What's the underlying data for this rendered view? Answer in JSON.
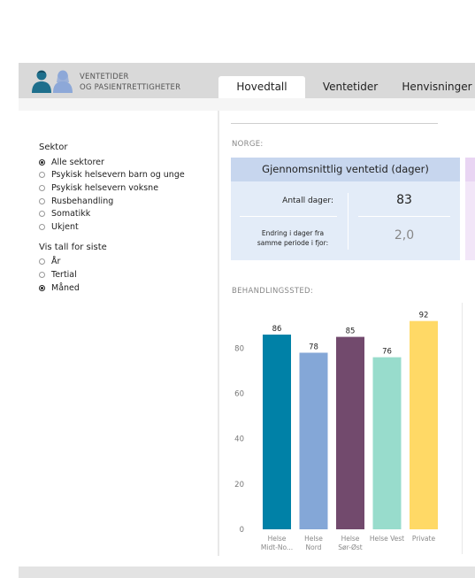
{
  "header": {
    "brand_line1": "VENTETIDER",
    "brand_line2": "OG PASIENTRETTIGHETER",
    "tabs": [
      {
        "label": "Hovedtall",
        "active": true
      },
      {
        "label": "Ventetider",
        "active": false
      },
      {
        "label": "Henvisninger",
        "active": false
      }
    ]
  },
  "sidebar": {
    "sector_title": "Sektor",
    "sector_options": [
      {
        "label": "Alle sektorer",
        "selected": true
      },
      {
        "label": "Psykisk helsevern barn og unge",
        "selected": false
      },
      {
        "label": "Psykisk helsevern voksne",
        "selected": false
      },
      {
        "label": "Rusbehandling",
        "selected": false
      },
      {
        "label": "Somatikk",
        "selected": false
      },
      {
        "label": "Ukjent",
        "selected": false
      }
    ],
    "period_title": "Vis tall for siste",
    "period_options": [
      {
        "label": "År",
        "selected": false
      },
      {
        "label": "Tertial",
        "selected": false
      },
      {
        "label": "Måned",
        "selected": true
      }
    ]
  },
  "main": {
    "norway_label": "NORGE:",
    "card": {
      "title": "Gjennomsnittlig ventetid (dager)",
      "days_label": "Antall dager:",
      "days_value": "83",
      "change_label_line1": "Endring i dager fra",
      "change_label_line2": "samme periode i fjor:",
      "change_value": "2,0"
    },
    "treatment_label": "BEHANDLINGSSTED:"
  },
  "colors": {
    "card_bg": "#e3ecf8",
    "card_header": "#c7d6ee",
    "accent_purple_strip": "#f2e6f8"
  },
  "chart_data": {
    "type": "bar",
    "categories": [
      [
        "Helse",
        "Midt-No..."
      ],
      [
        "Helse",
        "Nord"
      ],
      [
        "Helse",
        "Sør-Øst"
      ],
      [
        "Helse Vest"
      ],
      [
        "Private"
      ]
    ],
    "values": [
      86,
      78,
      85,
      76,
      92
    ],
    "colors": [
      "#0081a7",
      "#84a7d7",
      "#724a6d",
      "#98dccc",
      "#ffd966"
    ],
    "yticks": [
      0,
      20,
      40,
      60,
      80
    ],
    "ylim": [
      0,
      95
    ],
    "title": "",
    "xlabel": "",
    "ylabel": "",
    "grid": false
  }
}
